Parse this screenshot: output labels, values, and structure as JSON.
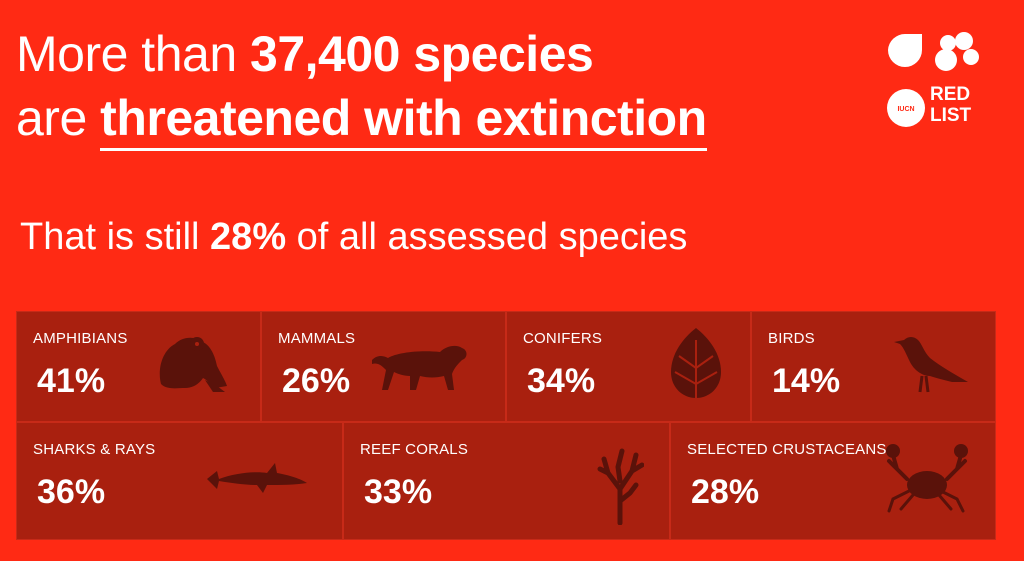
{
  "header": {
    "line1_prefix": "More than ",
    "line1_bold": "37,400 species",
    "line2_prefix": "are ",
    "line2_bold": "threatened with extinction"
  },
  "subline": {
    "prefix": "That is still ",
    "bold": "28%",
    "suffix": " of all assessed species"
  },
  "logo": {
    "text_top": "RED",
    "text_bottom": "LIST",
    "badge_text": "IUCN"
  },
  "categories": [
    {
      "name": "AMPHIBIANS",
      "value": "41%",
      "icon": "frog-icon"
    },
    {
      "name": "MAMMALS",
      "value": "26%",
      "icon": "tiger-icon"
    },
    {
      "name": "CONIFERS",
      "value": "34%",
      "icon": "pinecone-icon"
    },
    {
      "name": "BIRDS",
      "value": "14%",
      "icon": "bird-icon"
    },
    {
      "name": "SHARKS & RAYS",
      "value": "36%",
      "icon": "shark-icon"
    },
    {
      "name": "REEF CORALS",
      "value": "33%",
      "icon": "coral-icon"
    },
    {
      "name": "SELECTED CRUSTACEANS",
      "value": "28%",
      "icon": "crab-icon"
    }
  ],
  "colors": {
    "background": "#FF2A14",
    "tile": "#A9200F",
    "icon": "#5A120A",
    "text": "#FFFFFF"
  }
}
